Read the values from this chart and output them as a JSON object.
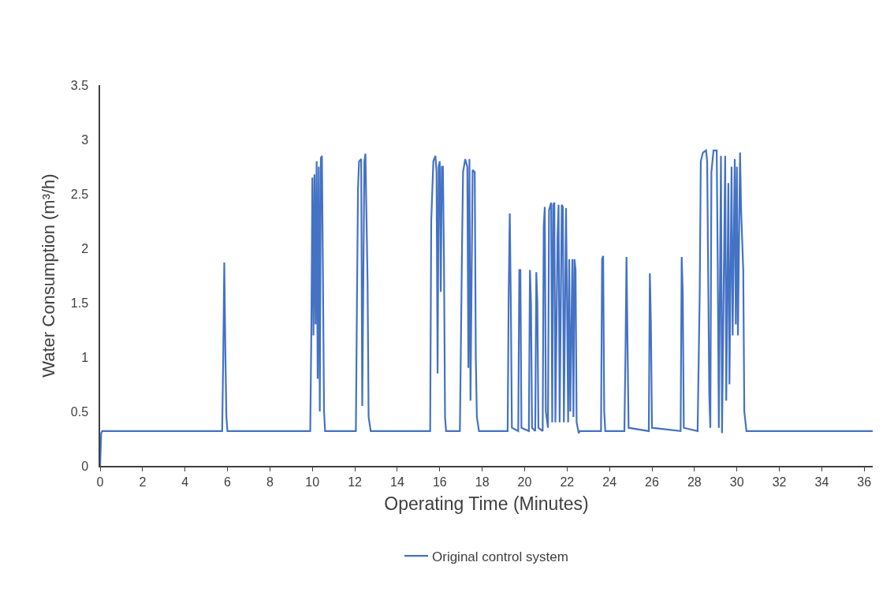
{
  "chart_data": {
    "type": "line",
    "xlabel": "Operating Time (Minutes)",
    "ylabel": "Water Consumption (m³/h)",
    "xlim": [
      0,
      36.4
    ],
    "xticks": [
      0,
      2,
      4,
      6,
      8,
      10,
      12,
      14,
      16,
      18,
      20,
      22,
      24,
      26,
      28,
      30,
      32,
      34,
      36
    ],
    "ylim": [
      0,
      3.5
    ],
    "yticks": [
      0,
      0.5,
      1,
      1.5,
      2,
      2.5,
      3,
      3.5
    ],
    "grid": false,
    "legend": "bottom",
    "marker": "none",
    "line_style": "solid",
    "series": [
      {
        "name": "Original control system",
        "color": "#4472c4",
        "x": [
          0,
          0.05,
          0.1,
          5.75,
          5.8,
          5.85,
          5.9,
          5.95,
          6.0,
          9.9,
          9.95,
          10.0,
          10.05,
          10.1,
          10.15,
          10.2,
          10.25,
          10.3,
          10.35,
          10.4,
          10.45,
          10.5,
          10.55,
          10.6,
          12.05,
          12.1,
          12.15,
          12.2,
          12.3,
          12.35,
          12.45,
          12.5,
          12.6,
          12.65,
          12.75,
          15.55,
          15.6,
          15.7,
          15.8,
          15.85,
          15.9,
          15.95,
          16.0,
          16.05,
          16.1,
          16.15,
          16.2,
          16.25,
          16.3,
          16.95,
          17.05,
          17.1,
          17.2,
          17.3,
          17.35,
          17.4,
          17.45,
          17.55,
          17.65,
          17.7,
          17.75,
          17.85,
          19.2,
          19.25,
          19.3,
          19.35,
          19.4,
          19.7,
          19.75,
          19.8,
          19.85,
          20.2,
          20.25,
          20.3,
          20.35,
          20.5,
          20.55,
          20.6,
          20.65,
          20.85,
          20.9,
          20.95,
          21.0,
          21.1,
          21.15,
          21.25,
          21.3,
          21.35,
          21.4,
          21.45,
          21.55,
          21.6,
          21.65,
          21.75,
          21.8,
          21.85,
          21.95,
          22.0,
          22.05,
          22.1,
          22.15,
          22.25,
          22.3,
          22.35,
          22.4,
          22.45,
          22.55,
          22.6,
          23.6,
          23.65,
          23.7,
          23.75,
          23.8,
          24.7,
          24.75,
          24.8,
          24.85,
          24.9,
          25.85,
          25.9,
          25.95,
          26.0,
          27.35,
          27.4,
          27.45,
          27.5,
          28.15,
          28.25,
          28.3,
          28.4,
          28.55,
          28.6,
          28.7,
          28.75,
          28.8,
          28.9,
          29.05,
          29.1,
          29.15,
          29.25,
          29.3,
          29.45,
          29.5,
          29.6,
          29.65,
          29.75,
          29.8,
          29.9,
          29.95,
          30.0,
          30.05,
          30.15,
          30.2,
          30.3,
          30.35,
          30.45,
          36.4
        ],
        "values": [
          0,
          0.3,
          0.32,
          0.32,
          1.0,
          1.87,
          1.05,
          0.45,
          0.32,
          0.32,
          1.2,
          2.65,
          1.2,
          2.68,
          1.3,
          2.8,
          0.8,
          2.75,
          0.5,
          2.83,
          2.85,
          1.7,
          0.5,
          0.32,
          0.32,
          1.5,
          2.55,
          2.8,
          2.82,
          0.55,
          2.8,
          2.87,
          1.7,
          0.45,
          0.32,
          0.32,
          2.25,
          2.8,
          2.85,
          2.7,
          0.85,
          2.75,
          2.8,
          1.6,
          2.75,
          2.75,
          1.9,
          0.45,
          0.32,
          0.32,
          2.0,
          2.7,
          2.82,
          2.75,
          0.9,
          2.82,
          0.6,
          2.72,
          2.7,
          1.0,
          0.45,
          0.32,
          0.32,
          1.6,
          2.32,
          1.5,
          0.35,
          0.32,
          1.8,
          1.8,
          0.35,
          0.32,
          1.8,
          1.5,
          0.35,
          0.32,
          1.78,
          1.5,
          0.35,
          0.32,
          2.2,
          2.38,
          0.5,
          0.35,
          2.35,
          2.42,
          0.4,
          2.4,
          2.42,
          0.4,
          2.1,
          2.4,
          0.4,
          2.4,
          2.38,
          0.4,
          2.37,
          1.5,
          0.4,
          1.9,
          0.5,
          1.9,
          0.45,
          1.9,
          1.8,
          0.4,
          0.3,
          0.32,
          0.32,
          1.9,
          1.93,
          0.5,
          0.32,
          0.32,
          1.0,
          1.92,
          1.1,
          0.35,
          0.32,
          1.77,
          1.3,
          0.35,
          0.32,
          1.92,
          1.6,
          0.35,
          0.32,
          1.6,
          2.8,
          2.88,
          2.9,
          2.8,
          0.65,
          0.35,
          2.7,
          2.9,
          2.9,
          1.8,
          0.35,
          2.85,
          0.3,
          2.85,
          0.6,
          2.6,
          0.75,
          2.75,
          1.2,
          2.82,
          1.3,
          2.75,
          1.2,
          2.88,
          2.35,
          1.8,
          0.5,
          0.32,
          0.32
        ]
      }
    ]
  }
}
